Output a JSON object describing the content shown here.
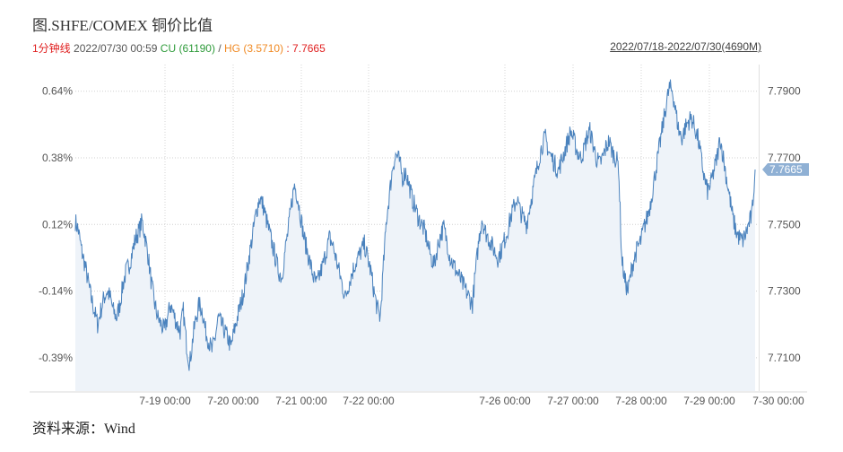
{
  "header": {
    "title": "图.SHFE/COMEX 铜价比值",
    "period": "1分钟线",
    "datetime": "2022/07/30 00:59",
    "cu_label": "CU",
    "cu_value": "(61190)",
    "sep": "/",
    "hg_label": "HG",
    "hg_value": "(3.5710)",
    "ratio_text": ": 7.7665",
    "range": "2022/07/18-2022/07/30(4690M)"
  },
  "source": "资料来源：Wind",
  "colors": {
    "line": "#4a82bd",
    "area": "#eef3f9",
    "price_tag": "#8fb0d4",
    "period": "#e02020",
    "cu": "#2e9b3a",
    "hg": "#f08a24"
  },
  "chart_data": {
    "type": "line",
    "title": "图.SHFE/COMEX 铜价比值",
    "left_axis_ticks": [
      "0.64%",
      "0.38%",
      "0.12%",
      "-0.14%",
      "-0.39%"
    ],
    "right_axis_ticks": [
      "7.7900",
      "7.7700",
      "7.7500",
      "7.7300",
      "7.7100"
    ],
    "y_range": [
      7.7,
      7.798
    ],
    "x_tick_labels": [
      "7-19 00:00",
      "7-20 00:00",
      "7-21 00:00",
      "7-22 00:00",
      "7-26 00:00",
      "7-27 00:00",
      "7-28 00:00",
      "7-29 00:00",
      "7-30 00:00"
    ],
    "last_value": 7.7665,
    "last_value_label": "7.7665",
    "grid": true,
    "series": [
      {
        "values": [
          7.751,
          7.748,
          7.742,
          7.738,
          7.733,
          7.728,
          7.724,
          7.72,
          7.724,
          7.728,
          7.73,
          7.728,
          7.724,
          7.722,
          7.726,
          7.732,
          7.736,
          7.738,
          7.742,
          7.746,
          7.748,
          7.751,
          7.746,
          7.74,
          7.732,
          7.726,
          7.722,
          7.72,
          7.718,
          7.722,
          7.726,
          7.723,
          7.72,
          7.718,
          7.724,
          7.714,
          7.708,
          7.716,
          7.722,
          7.726,
          7.724,
          7.718,
          7.715,
          7.712,
          7.716,
          7.722,
          7.72,
          7.718,
          7.716,
          7.713,
          7.718,
          7.722,
          7.726,
          7.73,
          7.736,
          7.742,
          7.748,
          7.754,
          7.758,
          7.756,
          7.752,
          7.748,
          7.744,
          7.74,
          7.736,
          7.734,
          7.742,
          7.748,
          7.756,
          7.762,
          7.758,
          7.752,
          7.746,
          7.742,
          7.738,
          7.734,
          7.732,
          7.735,
          7.738,
          7.742,
          7.746,
          7.744,
          7.74,
          7.736,
          7.732,
          7.728,
          7.732,
          7.735,
          7.738,
          7.74,
          7.742,
          7.744,
          7.74,
          7.736,
          7.73,
          7.725,
          7.722,
          7.738,
          7.752,
          7.76,
          7.768,
          7.771,
          7.769,
          7.764,
          7.766,
          7.762,
          7.758,
          7.755,
          7.752,
          7.75,
          7.748,
          7.744,
          7.74,
          7.738,
          7.743,
          7.747,
          7.749,
          7.745,
          7.74,
          7.738,
          7.736,
          7.734,
          7.732,
          7.73,
          7.728,
          7.726,
          7.736,
          7.745,
          7.752,
          7.748,
          7.746,
          7.744,
          7.742,
          7.74,
          7.742,
          7.745,
          7.748,
          7.752,
          7.755,
          7.758,
          7.754,
          7.752,
          7.75,
          7.755,
          7.76,
          7.765,
          7.77,
          7.774,
          7.776,
          7.772,
          7.77,
          7.768,
          7.766,
          7.769,
          7.772,
          7.775,
          7.778,
          7.775,
          7.772,
          7.77,
          7.772,
          7.776,
          7.778,
          7.774,
          7.77,
          7.768,
          7.77,
          7.773,
          7.775,
          7.772,
          7.77,
          7.768,
          7.74,
          7.733,
          7.73,
          7.736,
          7.74,
          7.743,
          7.745,
          7.749,
          7.752,
          7.756,
          7.762,
          7.768,
          7.774,
          7.78,
          7.786,
          7.791,
          7.79,
          7.784,
          7.778,
          7.776,
          7.779,
          7.781,
          7.782,
          7.779,
          7.776,
          7.77,
          7.764,
          7.76,
          7.762,
          7.766,
          7.77,
          7.776,
          7.77,
          7.764,
          7.758,
          7.752,
          7.748,
          7.746,
          7.745,
          7.747,
          7.75,
          7.753,
          7.7665
        ]
      }
    ]
  }
}
